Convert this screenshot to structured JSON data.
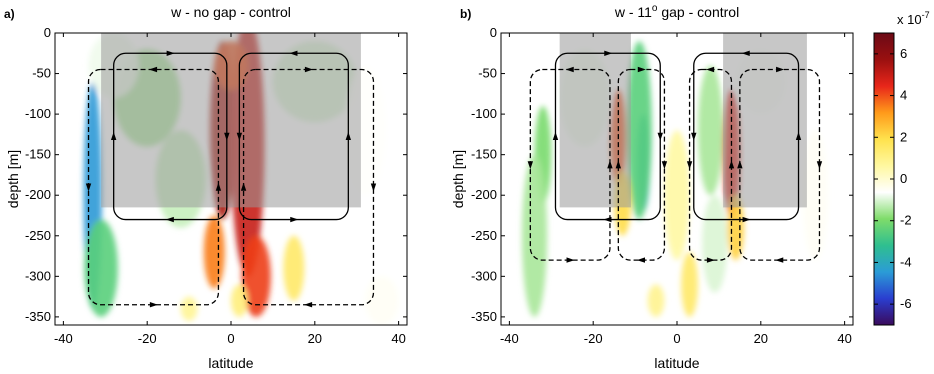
{
  "chart_data": {
    "type": "heatmap",
    "colorbar": {
      "exponent_label": "x 10",
      "exponent": "-7",
      "ticks": [
        -6,
        -4,
        -2,
        0,
        2,
        4,
        6
      ],
      "range": [
        -7,
        7
      ],
      "colors": [
        "#3a0a5c",
        "#2a3ed0",
        "#2b9cd6",
        "#2fbf8f",
        "#7fdc6a",
        "#ffffff",
        "#fff8a0",
        "#ffe24d",
        "#ff9a1a",
        "#e8261a",
        "#9a1010",
        "#6b0a16"
      ]
    },
    "panels": [
      {
        "letter": "a)",
        "title": "w -  no gap - control",
        "xlabel": "latitude",
        "ylabel": "depth [m]",
        "xlim": [
          -42,
          42
        ],
        "ylim": [
          -360,
          0
        ],
        "xticks": [
          -40,
          -20,
          0,
          20,
          40
        ],
        "yticks": [
          0,
          -50,
          -100,
          -150,
          -200,
          -250,
          -300,
          -350
        ],
        "shaded_regions": [
          {
            "x": [
              -31,
              31
            ],
            "y": [
              -215,
              0
            ],
            "color": "#999999"
          }
        ],
        "field": [
          {
            "x": -33,
            "y": -200,
            "value": -4.5,
            "rx": 2.2,
            "ry": 140
          },
          {
            "x": -31,
            "y": -290,
            "value": -2.5,
            "rx": 4,
            "ry": 60
          },
          {
            "x": -20,
            "y": -80,
            "value": -1.5,
            "rx": 8,
            "ry": 60
          },
          {
            "x": -12,
            "y": -180,
            "value": -1.2,
            "rx": 6,
            "ry": 60
          },
          {
            "x": -28,
            "y": -40,
            "value": -0.8,
            "rx": 6,
            "ry": 40
          },
          {
            "x": 20,
            "y": -60,
            "value": -1.0,
            "rx": 10,
            "ry": 50
          },
          {
            "x": 32,
            "y": -120,
            "value": -0.6,
            "rx": 5,
            "ry": 80
          },
          {
            "x": 36,
            "y": -330,
            "value": -0.5,
            "rx": 4,
            "ry": 30
          },
          {
            "x": -2,
            "y": -120,
            "value": 5.5,
            "rx": 3,
            "ry": 110
          },
          {
            "x": 4,
            "y": -140,
            "value": 5.0,
            "rx": 4,
            "ry": 160
          },
          {
            "x": 6,
            "y": -300,
            "value": 4.2,
            "rx": 3.5,
            "ry": 50
          },
          {
            "x": -4,
            "y": -270,
            "value": 3.5,
            "rx": 2.5,
            "ry": 45
          },
          {
            "x": 0,
            "y": -40,
            "value": 4.0,
            "rx": 4,
            "ry": 30
          },
          {
            "x": 15,
            "y": -290,
            "value": 1.5,
            "rx": 2.5,
            "ry": 40
          },
          {
            "x": 2,
            "y": -330,
            "value": 1.2,
            "rx": 2,
            "ry": 20
          },
          {
            "x": -10,
            "y": -340,
            "value": 0.8,
            "rx": 2,
            "ry": 15
          }
        ],
        "circulation": [
          {
            "style": "solid",
            "x": [
              -28,
              -1
            ],
            "y": [
              -230,
              -25
            ],
            "direction": "clockwise"
          },
          {
            "style": "solid",
            "x": [
              2,
              28
            ],
            "y": [
              -230,
              -25
            ],
            "direction": "counterclockwise"
          },
          {
            "style": "dashed",
            "x": [
              -34,
              -3
            ],
            "y": [
              -335,
              -45
            ],
            "direction": "counterclockwise"
          },
          {
            "style": "dashed",
            "x": [
              3,
              34
            ],
            "y": [
              -335,
              -45
            ],
            "direction": "clockwise"
          }
        ]
      },
      {
        "letter": "b)",
        "title": "w -  11",
        "title_superscript": "o",
        "title_suffix": " gap - control",
        "xlabel": "latitude",
        "ylabel": "depth [m]",
        "xlim": [
          -42,
          42
        ],
        "ylim": [
          -360,
          0
        ],
        "xticks": [
          -40,
          -20,
          0,
          20,
          40
        ],
        "yticks": [
          0,
          -50,
          -100,
          -150,
          -200,
          -250,
          -300,
          -350
        ],
        "shaded_regions": [
          {
            "x": [
              -28,
              -11
            ],
            "y": [
              -215,
              0
            ],
            "color": "#999999"
          },
          {
            "x": [
              11,
              31
            ],
            "y": [
              -215,
              0
            ],
            "color": "#999999"
          }
        ],
        "field": [
          {
            "x": -8,
            "y": -160,
            "value": -4.5,
            "rx": 1.6,
            "ry": 60
          },
          {
            "x": -9,
            "y": -120,
            "value": -2.5,
            "rx": 3,
            "ry": 110
          },
          {
            "x": -32,
            "y": -150,
            "value": -2.0,
            "rx": 2,
            "ry": 60
          },
          {
            "x": -34,
            "y": -250,
            "value": -1.5,
            "rx": 3,
            "ry": 100
          },
          {
            "x": -22,
            "y": -80,
            "value": -0.8,
            "rx": 6,
            "ry": 60
          },
          {
            "x": 8,
            "y": -120,
            "value": -1.5,
            "rx": 3,
            "ry": 80
          },
          {
            "x": 9,
            "y": -260,
            "value": -1.0,
            "rx": 3,
            "ry": 60
          },
          {
            "x": 20,
            "y": -60,
            "value": -0.7,
            "rx": 6,
            "ry": 40
          },
          {
            "x": 33,
            "y": -200,
            "value": -0.5,
            "rx": 3,
            "ry": 80
          },
          {
            "x": -14,
            "y": -130,
            "value": 4.0,
            "rx": 1.8,
            "ry": 60
          },
          {
            "x": -13,
            "y": -210,
            "value": 2.0,
            "rx": 2,
            "ry": 40
          },
          {
            "x": 13,
            "y": -150,
            "value": 4.6,
            "rx": 2,
            "ry": 80
          },
          {
            "x": 14,
            "y": -240,
            "value": 2.2,
            "rx": 2,
            "ry": 40
          },
          {
            "x": 3,
            "y": -310,
            "value": 1.5,
            "rx": 2,
            "ry": 40
          },
          {
            "x": -5,
            "y": -330,
            "value": 0.9,
            "rx": 2,
            "ry": 20
          },
          {
            "x": 0,
            "y": -200,
            "value": 0.6,
            "rx": 3,
            "ry": 80
          }
        ],
        "circulation": [
          {
            "style": "solid",
            "x": [
              -29,
              -4
            ],
            "y": [
              -230,
              -25
            ],
            "direction": "clockwise"
          },
          {
            "style": "solid",
            "x": [
              4,
              29
            ],
            "y": [
              -230,
              -25
            ],
            "direction": "counterclockwise"
          },
          {
            "style": "dashed",
            "x": [
              -35,
              -16
            ],
            "y": [
              -280,
              -45
            ],
            "direction": "counterclockwise"
          },
          {
            "style": "dashed",
            "x": [
              -14,
              -3
            ],
            "y": [
              -280,
              -45
            ],
            "direction": "clockwise"
          },
          {
            "style": "dashed",
            "x": [
              3,
              13
            ],
            "y": [
              -280,
              -45
            ],
            "direction": "counterclockwise"
          },
          {
            "style": "dashed",
            "x": [
              15,
              34
            ],
            "y": [
              -280,
              -45
            ],
            "direction": "clockwise"
          }
        ]
      }
    ]
  }
}
